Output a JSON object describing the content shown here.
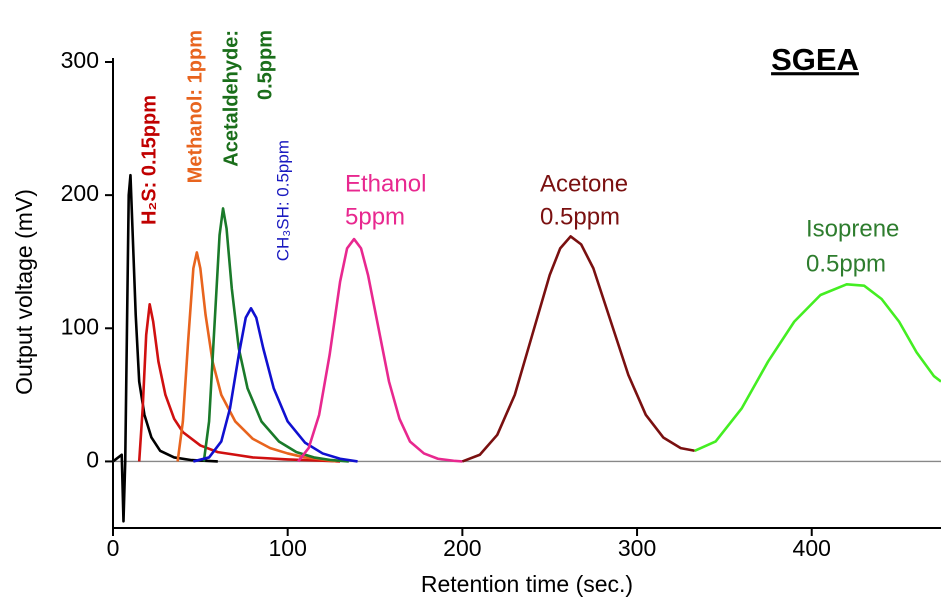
{
  "chart_data": {
    "type": "line",
    "title": "SGEA",
    "x_label": "Retention time (sec.)",
    "y_label": "Output voltage (mV)",
    "xlim": [
      0,
      474
    ],
    "ylim": [
      -50,
      303
    ],
    "xticks": [
      0,
      100,
      200,
      300,
      400
    ],
    "yticks": [
      0,
      100,
      200,
      300
    ],
    "series": [
      {
        "color": "#000000",
        "x": [
          0,
          5,
          6,
          7,
          8,
          9,
          10,
          11,
          13,
          15,
          18,
          22,
          27,
          35,
          45,
          60
        ],
        "values": [
          0,
          5,
          -45,
          0,
          100,
          200,
          215,
          180,
          110,
          60,
          35,
          18,
          8,
          3,
          1,
          0
        ]
      },
      {
        "name_lines": [
          "H₂S: 0.15ppm"
        ],
        "color": "#d01010",
        "label_color": "#c00000",
        "x": [
          15,
          17,
          19,
          21,
          23,
          26,
          30,
          35,
          40,
          50,
          60,
          70,
          80,
          100,
          120,
          130
        ],
        "values": [
          0,
          40,
          95,
          118,
          105,
          75,
          50,
          32,
          22,
          12,
          7,
          5,
          3,
          1.5,
          0.5,
          0
        ]
      },
      {
        "name_lines": [
          "Methanol: 1ppm"
        ],
        "color": "#e8641e",
        "label_color": "#e8641e",
        "x": [
          37,
          40,
          43,
          46,
          48,
          50,
          53,
          57,
          62,
          70,
          80,
          90,
          100,
          110,
          120,
          128
        ],
        "values": [
          0,
          30,
          90,
          145,
          157,
          145,
          110,
          75,
          50,
          30,
          17,
          10,
          6,
          3,
          1.5,
          0
        ]
      },
      {
        "name_lines": [
          "Acetaldehyde:",
          "0.5ppm"
        ],
        "color": "#1a7a2a",
        "label_color": "#1a6e1a",
        "x": [
          52,
          55,
          58,
          61,
          63,
          65,
          68,
          72,
          77,
          85,
          95,
          105,
          115,
          125,
          135
        ],
        "values": [
          0,
          30,
          100,
          170,
          190,
          175,
          130,
          85,
          55,
          30,
          15,
          7,
          3,
          1,
          0
        ]
      },
      {
        "name_lines": [
          "CH₃SH: 0.5ppm"
        ],
        "color": "#1010d0",
        "label_color": "#1a1ac0",
        "x": [
          46,
          55,
          62,
          67,
          72,
          76,
          79,
          82,
          86,
          92,
          100,
          110,
          120,
          130,
          140
        ],
        "values": [
          0,
          3,
          15,
          40,
          80,
          108,
          115,
          108,
          85,
          55,
          30,
          14,
          6,
          2,
          0
        ]
      },
      {
        "name_lines": [
          "Ethanol",
          "5ppm"
        ],
        "color": "#e8288f",
        "label_color": "#e8288f",
        "x": [
          106,
          112,
          118,
          124,
          130,
          134,
          138,
          142,
          146,
          152,
          158,
          164,
          170,
          178,
          186,
          195,
          200
        ],
        "values": [
          0,
          10,
          35,
          80,
          135,
          160,
          167,
          160,
          140,
          100,
          60,
          32,
          15,
          6,
          2,
          0.5,
          0
        ]
      },
      {
        "name_lines": [
          "Acetone",
          "0.5ppm"
        ],
        "color": "#7a1010",
        "label_color": "#7a1010",
        "x": [
          200,
          210,
          220,
          230,
          240,
          250,
          256,
          262,
          268,
          275,
          285,
          295,
          305,
          315,
          325,
          333
        ],
        "values": [
          0,
          5,
          20,
          50,
          95,
          140,
          160,
          169,
          163,
          145,
          105,
          65,
          35,
          18,
          10,
          8
        ]
      },
      {
        "name_lines": [
          "Isoprene",
          "0.5ppm"
        ],
        "color": "#44ee22",
        "label_color": "#2e7d2e",
        "x": [
          333,
          345,
          360,
          375,
          390,
          405,
          420,
          430,
          440,
          450,
          460,
          470,
          474
        ],
        "values": [
          8,
          15,
          40,
          75,
          105,
          125,
          133,
          132,
          122,
          105,
          82,
          64,
          60
        ]
      }
    ]
  }
}
